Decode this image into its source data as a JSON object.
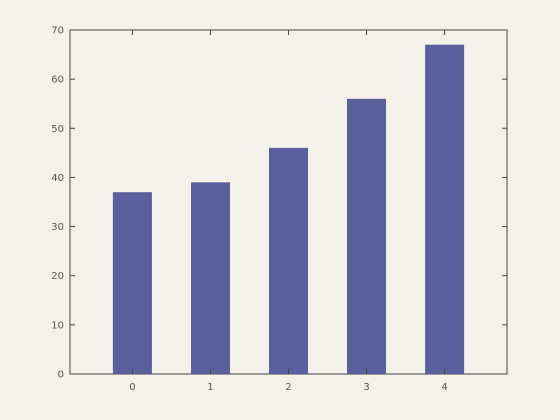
{
  "chart_data": {
    "type": "bar",
    "categories": [
      "0",
      "1",
      "2",
      "3",
      "4"
    ],
    "values": [
      37,
      39,
      46,
      56,
      67
    ],
    "ylim": [
      0,
      70
    ],
    "yticks": [
      0,
      10,
      20,
      30,
      40,
      50,
      60,
      70
    ],
    "xticks": [
      "0",
      "1",
      "2",
      "3",
      "4"
    ],
    "title": "",
    "xlabel": "",
    "ylabel": "",
    "grid": false,
    "colors": {
      "bar": "#5a5f9e",
      "axis": "#444444",
      "plot_background": "#f3f1e9"
    }
  }
}
